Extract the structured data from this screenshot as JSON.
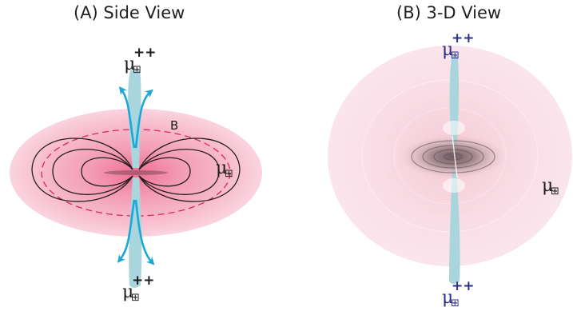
{
  "panels": {
    "side_view": {
      "title": "(A) Side View",
      "field_label": "B",
      "top_label": {
        "base": "μ",
        "superscript": "++",
        "subscript": "⊞"
      },
      "bottom_label": {
        "base": "μ",
        "superscript": "++",
        "subscript": "⊞"
      },
      "side_label": {
        "base": "μ",
        "subscript": "⊞"
      }
    },
    "view_3d": {
      "title": "(B) 3-D View",
      "top_label": {
        "base": "μ",
        "superscript": "++",
        "subscript": "⊞"
      },
      "bottom_label": {
        "base": "μ",
        "superscript": "++",
        "subscript": "⊞"
      },
      "side_label": {
        "base": "μ",
        "subscript": "⊞"
      }
    }
  },
  "colors": {
    "disk_pink": "#f4a9c0",
    "disk_light": "#fbe3ea",
    "jet": "#a9d6dc",
    "arrow": "#1aa7d8",
    "field_line": "#231f20",
    "dashed": "#e0245e",
    "label_blue": "#2b2f8c"
  }
}
